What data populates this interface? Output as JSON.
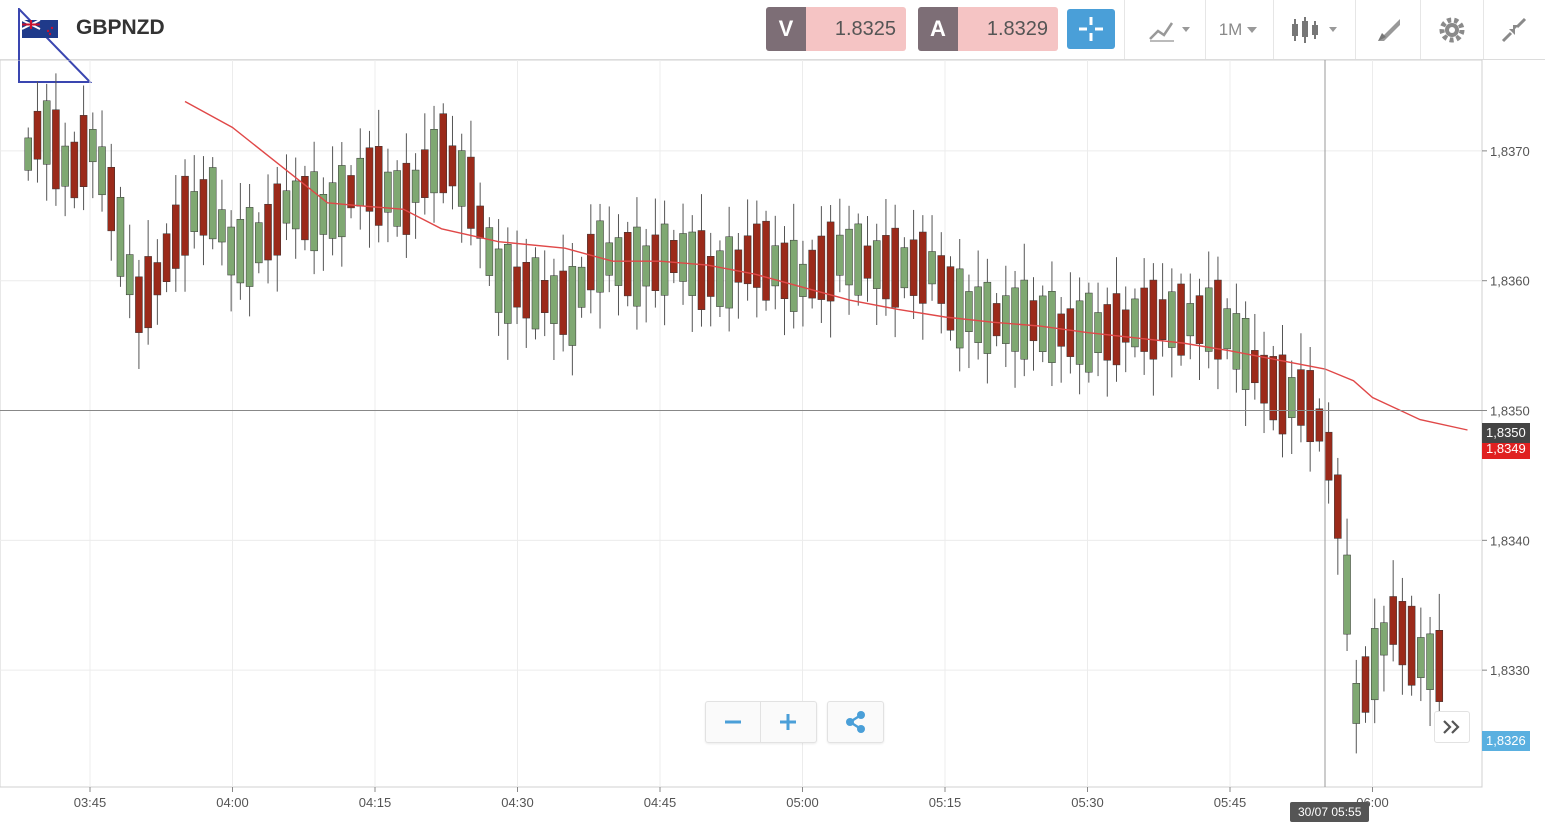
{
  "header": {
    "symbol": "GBPNZD",
    "sell_label": "V",
    "sell_price": "1.8325",
    "buy_label": "A",
    "buy_price": "1.8329",
    "timeframe": "1M",
    "icons": [
      "uk-nz-flag-icon",
      "crosshair-icon",
      "chart-type-icon",
      "candlestick-icon",
      "drawing-tool-icon",
      "gear-icon",
      "collapse-icon"
    ]
  },
  "colors": {
    "up_candle": "#7fa872",
    "down_candle": "#9b2a1a",
    "moving_average": "#e04848",
    "sell_bg": "#7d6e76",
    "price_bg": "#f5c4c4",
    "accent": "#4a9fd8",
    "current_price_tag": "#444444",
    "ma_tag": "#e02020",
    "bid_tag": "#5ab0e0"
  },
  "chart_tags": {
    "current_price": "1,8350",
    "ma_value": "1,8349",
    "bid_price": "1,8326",
    "crosshair_time": "30/07 05:55"
  },
  "chart_data": {
    "type": "candlestick",
    "ylim": [
      1.8321,
      1.8377
    ],
    "y_ticks": [
      {
        "value": 1.837,
        "label": "1,8370"
      },
      {
        "value": 1.836,
        "label": "1,8360"
      },
      {
        "value": 1.835,
        "label": "1,8350"
      },
      {
        "value": 1.834,
        "label": "1,8340"
      },
      {
        "value": 1.833,
        "label": "1,8330"
      }
    ],
    "x_ticks": [
      "03:45",
      "04:00",
      "04:15",
      "04:30",
      "04:45",
      "05:00",
      "05:15",
      "05:30",
      "05:45",
      "06:00"
    ],
    "x_start_minute": 218.5,
    "horizontal_line": 1.835,
    "crosshair_minute": 355,
    "grid": true,
    "up_flags": [
      1,
      0,
      1,
      0,
      1,
      0,
      0,
      1,
      1,
      0,
      1,
      1,
      0,
      0,
      0,
      0,
      0,
      0,
      1,
      0,
      1,
      1,
      1,
      1,
      1,
      1,
      0,
      0,
      1,
      1,
      0,
      1,
      1,
      1,
      1,
      0,
      1,
      0,
      0,
      1,
      1,
      0,
      1,
      0,
      1,
      0,
      0,
      1,
      0,
      0,
      1,
      1,
      1,
      0,
      0,
      1,
      0,
      1,
      0,
      1,
      1,
      0,
      1,
      1,
      1,
      0,
      1,
      1,
      0,
      1,
      0,
      1,
      1,
      0,
      0,
      1,
      1,
      0,
      0,
      0,
      0,
      1,
      0,
      1,
      1,
      0,
      0,
      0,
      1,
      1,
      1,
      0,
      1,
      0,
      0,
      1,
      0,
      0,
      1,
      0,
      0,
      1,
      1,
      1,
      1,
      0,
      1,
      1,
      1,
      0,
      1,
      1,
      0,
      0,
      1,
      1,
      1,
      0,
      0,
      0,
      1,
      0,
      0,
      0,
      1,
      0,
      1,
      0,
      1,
      0,
      1,
      1,
      1,
      0,
      0,
      0,
      0,
      1,
      0,
      0,
      0,
      0,
      0,
      1,
      1,
      0,
      1,
      1,
      0,
      0,
      0,
      1,
      1,
      0
    ],
    "ma": [
      [
        235,
        1.83738
      ],
      [
        240,
        1.83718
      ],
      [
        245,
        1.83689
      ],
      [
        250,
        1.8366
      ],
      [
        253,
        1.83658
      ],
      [
        258,
        1.83655
      ],
      [
        262,
        1.8364
      ],
      [
        268,
        1.8363
      ],
      [
        275,
        1.83625
      ],
      [
        280,
        1.83615
      ],
      [
        285,
        1.83615
      ],
      [
        290,
        1.83612
      ],
      [
        295,
        1.83605
      ],
      [
        300,
        1.83595
      ],
      [
        305,
        1.83585
      ],
      [
        310,
        1.83578
      ],
      [
        315,
        1.83572
      ],
      [
        320,
        1.83568
      ],
      [
        325,
        1.83565
      ],
      [
        330,
        1.8356
      ],
      [
        335,
        1.83556
      ],
      [
        340,
        1.83552
      ],
      [
        345,
        1.83546
      ],
      [
        350,
        1.83539
      ],
      [
        355,
        1.83532
      ],
      [
        358,
        1.83523
      ],
      [
        360,
        1.8351
      ],
      [
        365,
        1.83493
      ],
      [
        370,
        1.83485
      ]
    ]
  }
}
